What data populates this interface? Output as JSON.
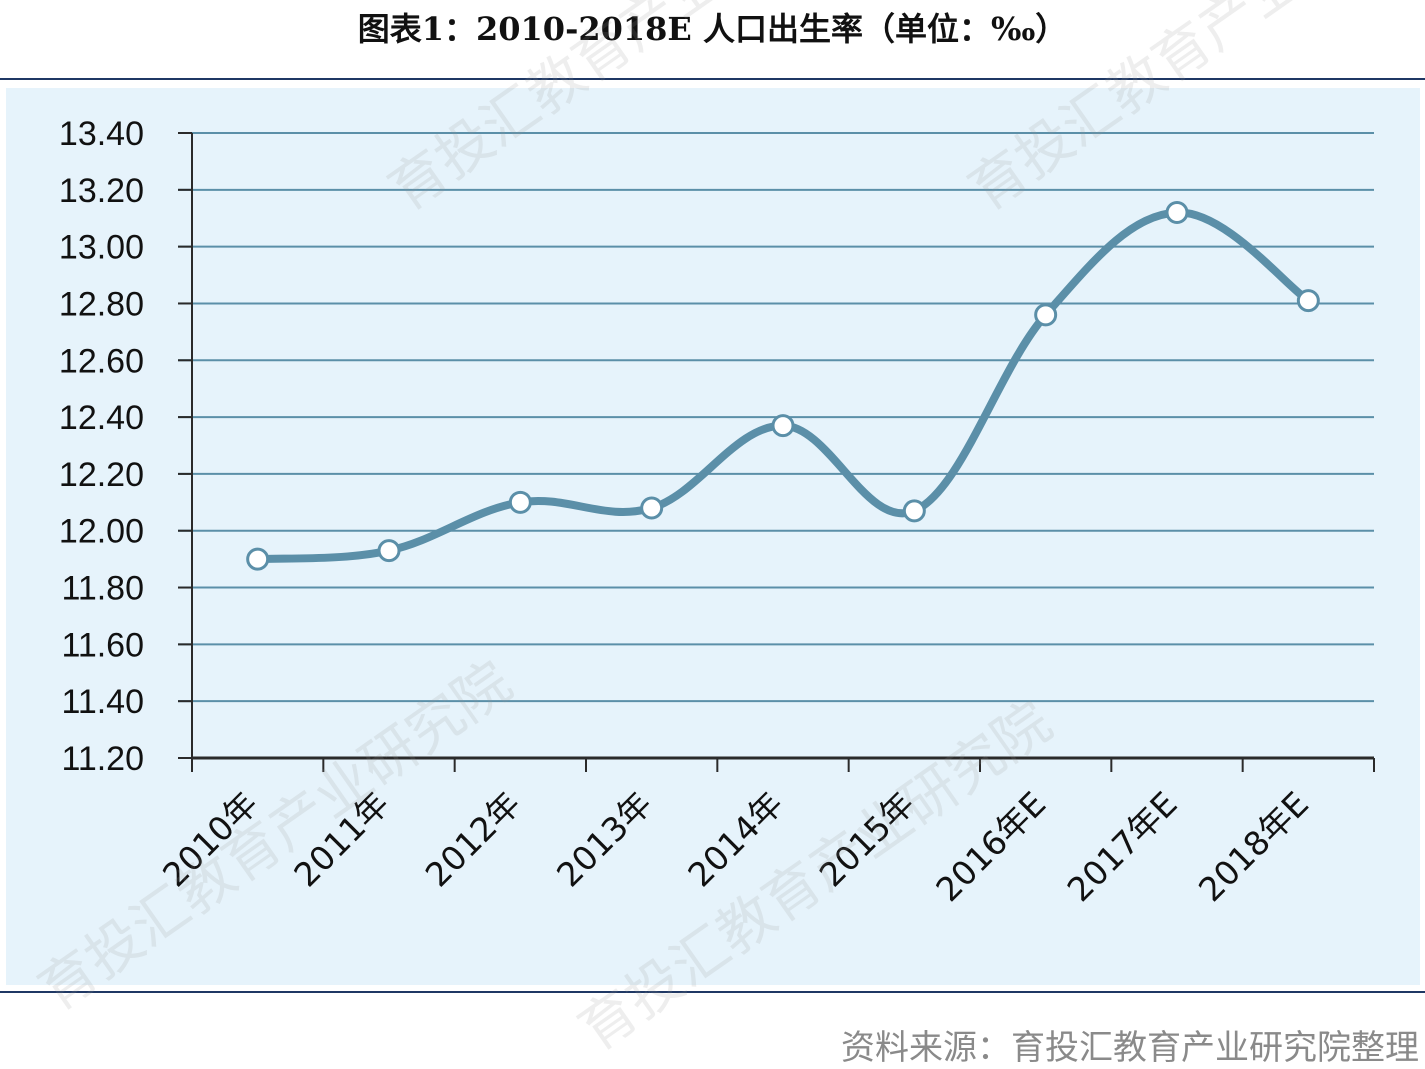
{
  "chart_data": {
    "type": "line",
    "title": "图表1：2010-2018E 人口出生率（单位：‰）",
    "categories": [
      "2010年",
      "2011年",
      "2012年",
      "2013年",
      "2014年",
      "2015年",
      "2016年E",
      "2017年E",
      "2018年E"
    ],
    "values": [
      11.9,
      11.93,
      12.1,
      12.08,
      12.37,
      12.07,
      12.76,
      13.12,
      12.81
    ],
    "yticks": [
      "11.20",
      "11.40",
      "11.60",
      "11.80",
      "12.00",
      "12.20",
      "12.40",
      "12.60",
      "12.80",
      "13.00",
      "13.20",
      "13.40"
    ],
    "ylim": [
      11.2,
      13.4
    ],
    "grid": true,
    "line_color": "#5b8fa8",
    "background_color": "#e6f3fb"
  },
  "source": "资料来源：育投汇教育产业研究院整理",
  "watermark": "育投汇教育产业研究院"
}
